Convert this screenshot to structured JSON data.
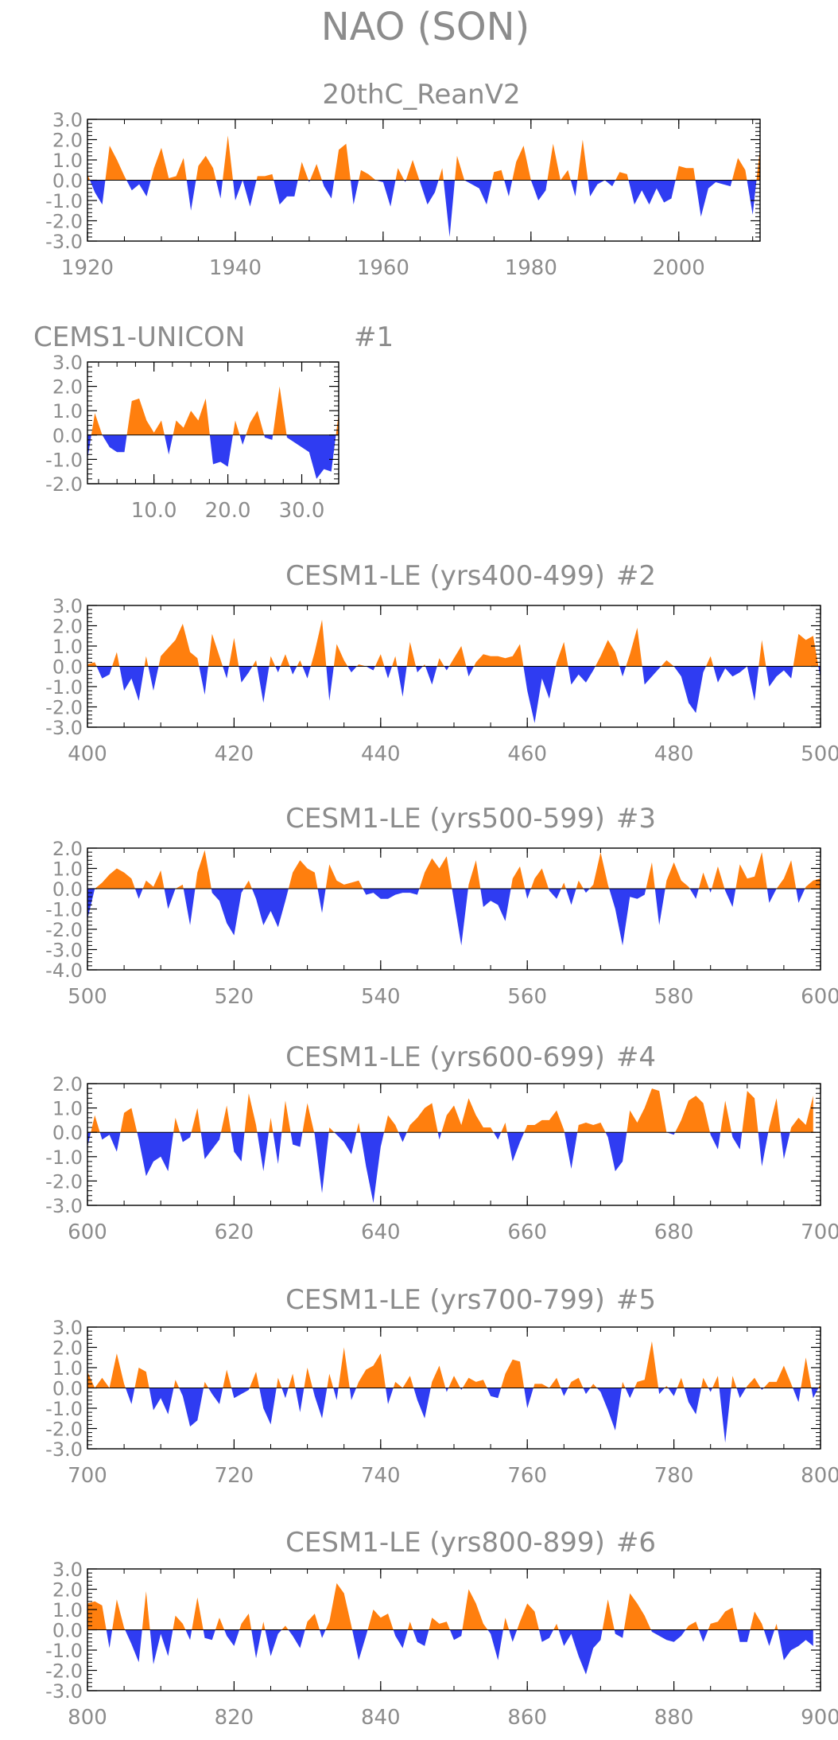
{
  "page_title": "NAO (SON)",
  "colors": {
    "positive": "#ff7f0e",
    "negative": "#2f3cf2",
    "frame": "#000000",
    "text": "#8c8c8c"
  },
  "chart_data": [
    {
      "id": "p0",
      "type": "area",
      "title": "20thC_ReanV2",
      "panel_tag": "",
      "xlim": [
        1920,
        2011
      ],
      "ylim": [
        -3.0,
        3.0
      ],
      "yticks": [
        "3.0",
        "2.0",
        "1.0",
        "0.0",
        "-1.0",
        "-2.0",
        "-3.0"
      ],
      "xticks": [
        "1920",
        "1940",
        "1960",
        "1980",
        "2000"
      ],
      "x_start": 1920,
      "values": [
        0.3,
        -0.6,
        -1.2,
        1.7,
        1.0,
        0.2,
        -0.5,
        -0.2,
        -0.8,
        0.6,
        1.6,
        0.1,
        0.2,
        1.1,
        -1.5,
        0.7,
        1.2,
        0.6,
        -0.9,
        2.2,
        -1.0,
        0.0,
        -1.3,
        0.2,
        0.2,
        0.3,
        -1.2,
        -0.8,
        -0.8,
        0.9,
        -0.1,
        0.8,
        -0.3,
        -0.9,
        1.5,
        1.8,
        -1.2,
        0.5,
        0.3,
        0.0,
        -0.1,
        -1.3,
        0.6,
        -0.1,
        1.0,
        -0.1,
        -1.2,
        -0.6,
        0.6,
        -2.8,
        1.2,
        0.0,
        -0.2,
        -0.4,
        -1.2,
        0.4,
        0.5,
        -0.8,
        0.9,
        1.7,
        0.0,
        -1.0,
        -0.5,
        1.8,
        0.0,
        0.5,
        -0.8,
        2.0,
        -0.8,
        -0.2,
        0.0,
        -0.3,
        0.4,
        0.3,
        -1.2,
        -0.5,
        -1.2,
        -0.4,
        -1.1,
        -0.9,
        0.7,
        0.6,
        0.6,
        -1.8,
        -0.4,
        -0.1,
        -0.2,
        -0.3,
        1.1,
        0.5,
        -1.7,
        1.6
      ]
    },
    {
      "id": "p1",
      "type": "area",
      "title": "CEMS1-UNICON",
      "panel_tag": "#1",
      "xlim": [
        1,
        35
      ],
      "ylim": [
        -2.0,
        3.0
      ],
      "yticks": [
        "3.0",
        "2.0",
        "1.0",
        "0.0",
        "-1.0",
        "-2.0"
      ],
      "xticks": [
        "10.0",
        "20.0",
        "30.0"
      ],
      "x_start": 1,
      "values": [
        -1.0,
        0.9,
        0.0,
        -0.5,
        -0.7,
        -0.7,
        1.4,
        1.5,
        0.6,
        0.1,
        0.6,
        -0.8,
        0.6,
        0.3,
        1.0,
        0.6,
        1.5,
        -1.2,
        -1.1,
        -1.3,
        0.6,
        -0.4,
        0.5,
        1.0,
        -0.1,
        -0.2,
        2.0,
        -0.1,
        -0.3,
        -0.5,
        -0.7,
        -1.8,
        -1.4,
        -1.5,
        0.9
      ]
    },
    {
      "id": "p2",
      "type": "area",
      "title": "CESM1-LE (yrs400-499)",
      "panel_tag": "#2",
      "xlim": [
        400,
        500
      ],
      "ylim": [
        -3.0,
        3.0
      ],
      "yticks": [
        "3.0",
        "2.0",
        "1.0",
        "0.0",
        "-1.0",
        "-2.0",
        "-3.0"
      ],
      "xticks": [
        "400",
        "420",
        "440",
        "460",
        "480",
        "500"
      ],
      "x_start": 400,
      "values": [
        0.1,
        0.2,
        -0.6,
        -0.4,
        0.7,
        -1.2,
        -0.6,
        -1.7,
        0.5,
        -1.2,
        0.5,
        0.9,
        1.3,
        2.1,
        0.7,
        0.4,
        -1.4,
        1.6,
        0.5,
        -0.6,
        1.4,
        -0.8,
        -0.3,
        0.3,
        -1.8,
        0.5,
        -0.3,
        0.6,
        -0.4,
        0.3,
        -0.6,
        0.7,
        2.3,
        -1.7,
        1.1,
        0.3,
        -0.3,
        0.1,
        0.0,
        -0.2,
        0.6,
        -0.6,
        0.5,
        -1.5,
        1.2,
        -0.3,
        0.1,
        -0.9,
        0.4,
        -0.2,
        0.4,
        1.0,
        -0.5,
        0.2,
        0.6,
        0.5,
        0.5,
        0.4,
        0.5,
        1.1,
        -1.2,
        -2.8,
        -0.6,
        -1.6,
        0.2,
        1.2,
        -0.9,
        -0.4,
        -0.8,
        -0.2,
        0.5,
        1.3,
        0.7,
        -0.5,
        0.6,
        1.9,
        -0.9,
        -0.5,
        -0.1,
        0.3,
        0.0,
        -0.5,
        -1.8,
        -2.3,
        -0.3,
        0.5,
        -0.8,
        -0.1,
        -0.5,
        -0.3,
        0.0,
        -1.7,
        1.3,
        -1.0,
        -0.5,
        -0.2,
        -0.6,
        1.6,
        1.3,
        1.5,
        -0.6
      ]
    },
    {
      "id": "p3",
      "type": "area",
      "title": "CESM1-LE (yrs500-599)",
      "panel_tag": "#3",
      "xlim": [
        500,
        600
      ],
      "ylim": [
        -4.0,
        2.0
      ],
      "yticks": [
        "2.0",
        "1.0",
        "0.0",
        "-1.0",
        "-2.0",
        "-3.0",
        "-4.0"
      ],
      "xticks": [
        "500",
        "520",
        "540",
        "560",
        "580",
        "600"
      ],
      "x_start": 500,
      "values": [
        -1.5,
        0.0,
        0.3,
        0.7,
        1.0,
        0.8,
        0.5,
        -0.5,
        0.4,
        0.1,
        0.9,
        -1.0,
        0.0,
        0.2,
        -1.8,
        0.8,
        1.9,
        -0.2,
        -0.6,
        -1.7,
        -2.3,
        -0.2,
        0.4,
        -0.5,
        -1.8,
        -1.1,
        -1.9,
        -0.6,
        0.8,
        1.4,
        1.0,
        0.8,
        -1.2,
        1.2,
        0.4,
        0.2,
        0.3,
        0.4,
        -0.3,
        -0.2,
        -0.5,
        -0.5,
        -0.3,
        -0.2,
        -0.2,
        -0.3,
        0.8,
        1.5,
        1.0,
        1.6,
        -0.6,
        -2.8,
        0.2,
        1.4,
        -0.9,
        -0.6,
        -0.8,
        -1.6,
        0.5,
        1.1,
        -0.5,
        0.5,
        1.0,
        -0.1,
        -0.5,
        0.3,
        -0.8,
        0.4,
        -0.2,
        0.2,
        1.8,
        0.2,
        -1.0,
        -2.8,
        -0.4,
        -0.5,
        -0.3,
        1.3,
        -1.8,
        0.4,
        1.3,
        0.4,
        0.1,
        -0.5,
        0.8,
        -0.2,
        1.1,
        -0.1,
        -0.9,
        1.2,
        0.5,
        0.6,
        1.8,
        -0.7,
        0.0,
        0.5,
        1.4,
        -0.7,
        0.1,
        0.4,
        0.5
      ]
    },
    {
      "id": "p4",
      "type": "area",
      "title": "CESM1-LE (yrs600-699)",
      "panel_tag": "#4",
      "xlim": [
        600,
        700
      ],
      "ylim": [
        -3.0,
        2.0
      ],
      "yticks": [
        "2.0",
        "1.0",
        "0.0",
        "-1.0",
        "-2.0",
        "-3.0"
      ],
      "xticks": [
        "600",
        "620",
        "640",
        "660",
        "680",
        "700"
      ],
      "x_start": 600,
      "values": [
        -0.6,
        0.7,
        -0.3,
        -0.1,
        -0.8,
        0.8,
        1.0,
        -0.3,
        -1.8,
        -1.2,
        -1.0,
        -1.6,
        0.6,
        -0.4,
        -0.2,
        1.0,
        -1.1,
        -0.7,
        -0.3,
        1.1,
        -0.8,
        -1.2,
        1.6,
        0.3,
        -1.6,
        0.6,
        -1.3,
        1.3,
        -0.5,
        -0.6,
        1.2,
        -0.1,
        -2.5,
        0.2,
        -0.1,
        -0.4,
        -0.9,
        0.4,
        -1.4,
        -2.9,
        -0.6,
        0.7,
        0.3,
        -0.4,
        0.3,
        0.6,
        1.0,
        1.2,
        -0.3,
        0.7,
        1.1,
        0.3,
        1.4,
        0.7,
        0.2,
        0.2,
        -0.3,
        0.4,
        -1.2,
        -0.4,
        0.3,
        0.3,
        0.5,
        0.5,
        0.9,
        0.1,
        -1.5,
        0.3,
        0.4,
        0.3,
        0.4,
        -0.2,
        -1.6,
        -1.2,
        0.9,
        0.4,
        1.0,
        1.8,
        1.7,
        0.0,
        -0.1,
        0.5,
        1.3,
        1.5,
        1.2,
        -0.1,
        -0.7,
        1.3,
        -0.2,
        -0.7,
        1.7,
        1.4,
        -1.4,
        0.2,
        1.4,
        -1.1,
        0.2,
        0.6,
        0.3,
        1.5
      ]
    },
    {
      "id": "p5",
      "type": "area",
      "title": "CESM1-LE (yrs700-799)",
      "panel_tag": "#5",
      "xlim": [
        700,
        800
      ],
      "ylim": [
        -3.0,
        3.0
      ],
      "yticks": [
        "3.0",
        "2.0",
        "1.0",
        "0.0",
        "-1.0",
        "-2.0",
        "-3.0"
      ],
      "xticks": [
        "700",
        "720",
        "740",
        "760",
        "780",
        "800"
      ],
      "x_start": 700,
      "values": [
        0.8,
        0.0,
        0.5,
        0.0,
        1.7,
        0.2,
        -0.8,
        1.0,
        0.8,
        -1.1,
        -0.5,
        -1.3,
        0.4,
        -0.4,
        -1.9,
        -1.6,
        0.3,
        -0.3,
        -0.8,
        0.9,
        -0.5,
        -0.3,
        -0.1,
        0.8,
        -1.0,
        -1.8,
        0.5,
        -0.5,
        0.7,
        -1.2,
        1.0,
        -0.4,
        -1.5,
        0.7,
        -0.6,
        2.0,
        -0.6,
        0.3,
        0.9,
        1.1,
        1.7,
        -0.8,
        0.3,
        0.0,
        0.6,
        -0.6,
        -1.5,
        0.3,
        1.1,
        -0.2,
        0.6,
        -0.1,
        0.5,
        0.3,
        0.4,
        -0.4,
        -0.5,
        0.7,
        1.4,
        1.3,
        -1.0,
        0.2,
        0.2,
        0.0,
        0.5,
        -0.4,
        0.3,
        0.5,
        -0.3,
        0.2,
        -0.2,
        -1.1,
        -2.1,
        0.3,
        -0.5,
        0.3,
        0.4,
        2.3,
        -0.3,
        0.1,
        -0.4,
        0.5,
        -0.7,
        -1.3,
        0.5,
        -0.2,
        0.6,
        -2.7,
        0.6,
        -0.5,
        0.1,
        0.5,
        -0.1,
        0.3,
        0.3,
        1.1,
        0.2,
        -0.7,
        1.5,
        -0.5,
        0.2
      ]
    },
    {
      "id": "p6",
      "type": "area",
      "title": "CESM1-LE (yrs800-899)",
      "panel_tag": "#6",
      "xlim": [
        800,
        900
      ],
      "ylim": [
        -3.0,
        3.0
      ],
      "yticks": [
        "3.0",
        "2.0",
        "1.0",
        "0.0",
        "-1.0",
        "-2.0",
        "-3.0"
      ],
      "xticks": [
        "800",
        "820",
        "840",
        "860",
        "880",
        "900"
      ],
      "x_start": 800,
      "values": [
        1.3,
        1.4,
        1.2,
        -0.9,
        1.5,
        0.1,
        -0.7,
        -1.6,
        1.9,
        -1.7,
        -0.2,
        -1.3,
        0.7,
        0.3,
        -0.5,
        1.6,
        -0.4,
        -0.5,
        0.6,
        -0.3,
        -0.8,
        0.3,
        0.8,
        -1.4,
        0.4,
        -1.3,
        -0.2,
        0.2,
        -0.3,
        -0.9,
        0.4,
        0.8,
        -0.4,
        0.4,
        2.3,
        1.8,
        0.2,
        -1.5,
        -0.3,
        1.0,
        0.6,
        0.8,
        -0.3,
        -0.9,
        0.4,
        -0.6,
        -0.8,
        0.6,
        0.3,
        0.4,
        -0.5,
        -0.3,
        2.0,
        1.3,
        0.3,
        -0.2,
        -1.5,
        0.6,
        -0.6,
        0.4,
        1.3,
        0.9,
        -0.6,
        -0.4,
        0.3,
        -0.8,
        -0.2,
        -1.3,
        -2.2,
        -0.9,
        -0.5,
        1.5,
        -0.2,
        -0.4,
        1.8,
        1.3,
        0.7,
        -0.1,
        -0.3,
        -0.5,
        -0.6,
        -0.3,
        0.2,
        0.4,
        -0.6,
        0.3,
        0.4,
        0.9,
        1.1,
        -0.6,
        -0.6,
        0.9,
        0.3,
        -0.8,
        0.3,
        -1.5,
        -1.0,
        -0.8,
        -0.5,
        -0.8
      ]
    }
  ]
}
